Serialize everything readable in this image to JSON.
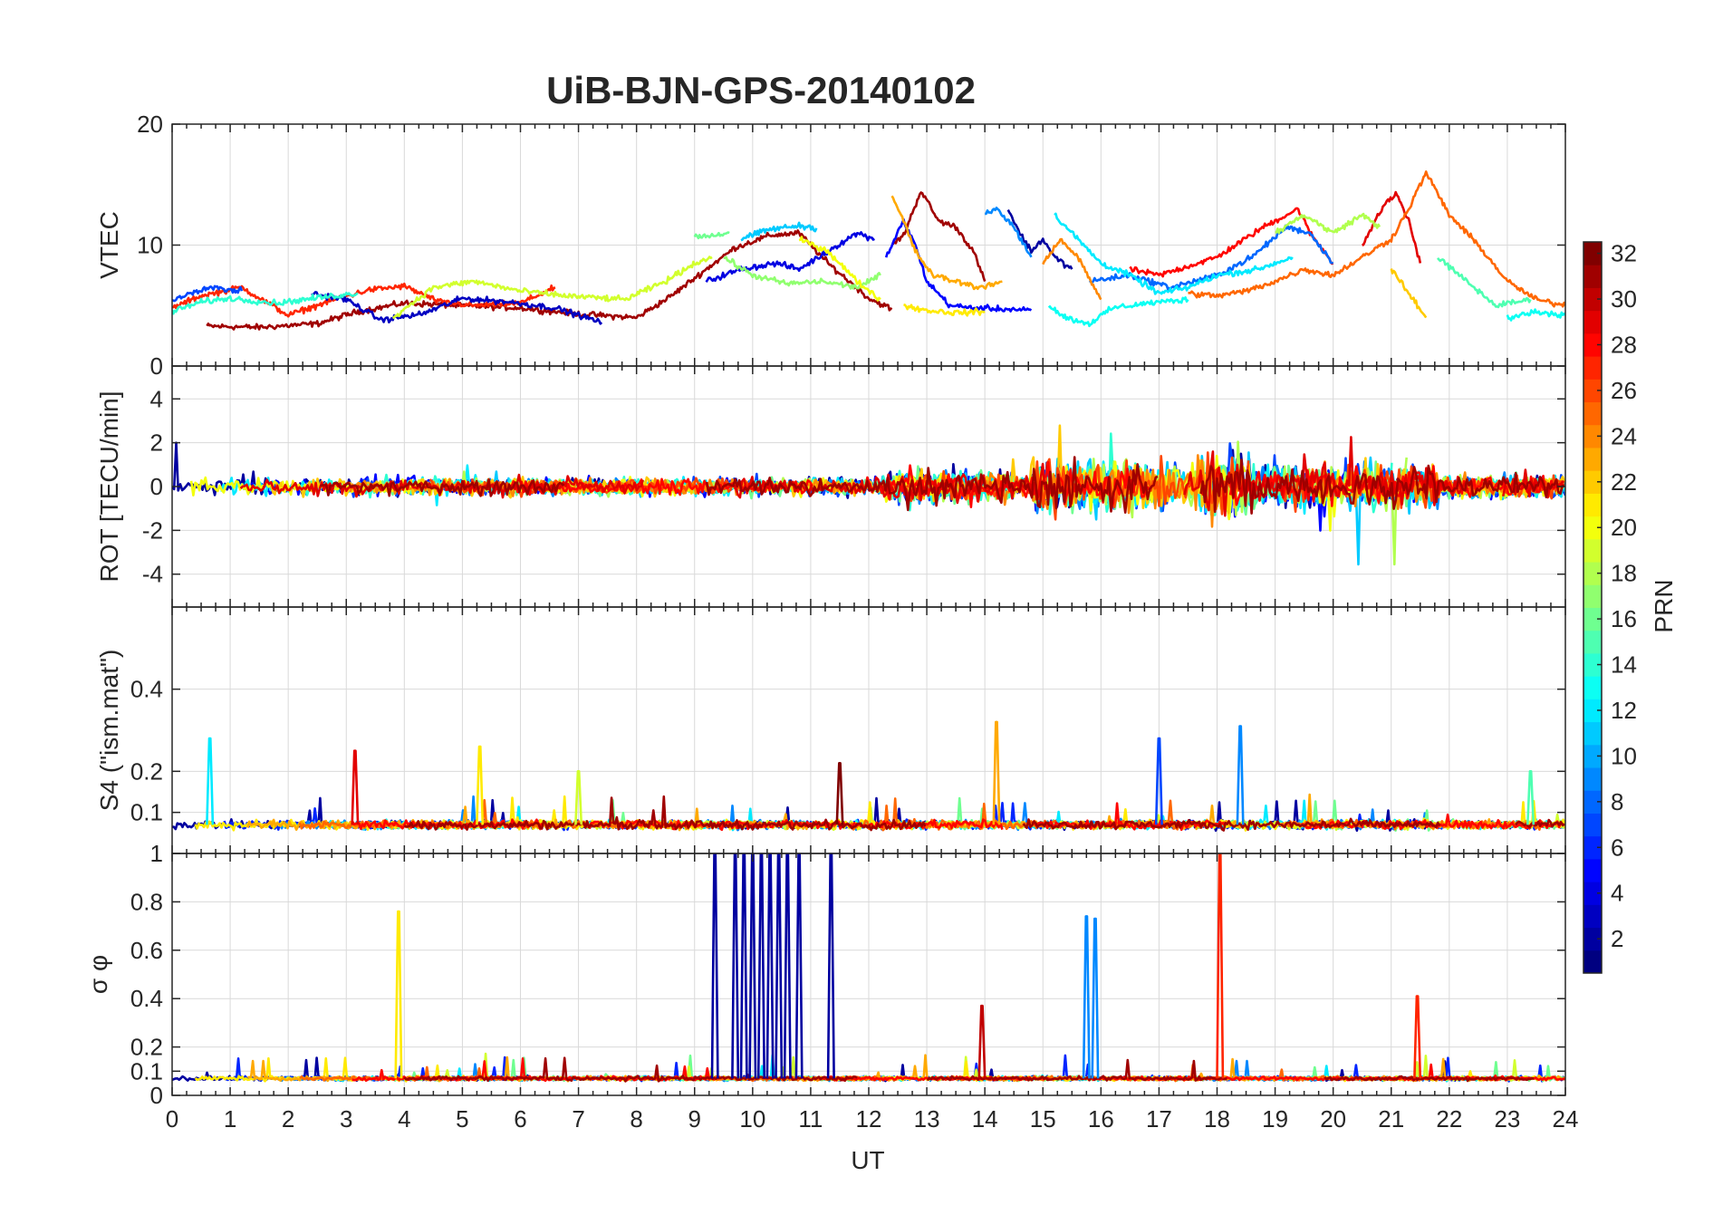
{
  "chart_data": {
    "type": "line",
    "title": "UiB-BJN-GPS-20140102",
    "xlabel": "UT",
    "x_ticks": [
      "0",
      "1",
      "2",
      "3",
      "4",
      "5",
      "6",
      "7",
      "8",
      "9",
      "10",
      "11",
      "12",
      "13",
      "14",
      "15",
      "16",
      "17",
      "18",
      "19",
      "20",
      "21",
      "22",
      "23",
      "24"
    ],
    "xlim": [
      0,
      24
    ],
    "colorbar": {
      "label": "PRN",
      "ticks": [
        "2",
        "4",
        "6",
        "8",
        "10",
        "12",
        "14",
        "16",
        "18",
        "20",
        "22",
        "24",
        "26",
        "28",
        "30",
        "32"
      ],
      "range": [
        1,
        32
      ],
      "colormap": "jet"
    },
    "panels": [
      {
        "ylabel": "VTEC",
        "ylim": [
          0,
          20
        ],
        "y_ticks": [
          "0",
          "10",
          "20"
        ],
        "series": [
          {
            "prn": 31,
            "x": [
              0.6,
              1.5,
              2.5,
              3.2,
              4.0,
              5.0,
              6.0,
              7.0,
              8.0,
              8.6,
              9.2,
              9.7,
              10.3,
              10.8,
              11.3,
              12.0,
              12.4
            ],
            "y": [
              3.3,
              3.2,
              3.5,
              4.5,
              5.2,
              5.0,
              4.8,
              4.3,
              4.0,
              5.8,
              8.0,
              9.8,
              10.8,
              11.0,
              8.5,
              5.6,
              4.7
            ]
          },
          {
            "prn": 31,
            "x": [
              12.4,
              12.6,
              12.9,
              13.2,
              13.5,
              13.8,
              14.0
            ],
            "y": [
              10.0,
              10.8,
              14.5,
              12.0,
              11.5,
              9.5,
              7.0
            ]
          },
          {
            "prn": 27,
            "x": [
              0.0,
              0.5,
              1.2,
              2.0,
              2.8,
              3.4,
              4.0,
              4.6,
              5.2,
              6.0,
              6.6
            ],
            "y": [
              4.8,
              5.8,
              6.5,
              4.2,
              5.5,
              6.3,
              6.6,
              5.3,
              5.0,
              5.2,
              6.5
            ]
          },
          {
            "prn": 28,
            "x": [
              16.5,
              17.0,
              18.0,
              18.8,
              19.4,
              19.6,
              20.0
            ],
            "y": [
              8.0,
              7.5,
              9.0,
              11.5,
              13.0,
              11.0,
              8.5
            ]
          },
          {
            "prn": 29,
            "x": [
              20.5,
              20.9,
              21.1,
              21.3,
              21.5
            ],
            "y": [
              10.0,
              13.5,
              14.2,
              12.0,
              8.5
            ]
          },
          {
            "prn": 3,
            "x": [
              2.4,
              3.0,
              3.6,
              4.3,
              5.0,
              5.8,
              6.6,
              7.4
            ],
            "y": [
              6.0,
              5.5,
              3.8,
              4.3,
              5.6,
              5.3,
              4.8,
              3.6
            ]
          },
          {
            "prn": 4,
            "x": [
              9.2,
              9.8,
              10.4,
              10.8,
              11.3,
              11.8,
              12.1
            ],
            "y": [
              7.0,
              8.0,
              8.5,
              8.0,
              9.5,
              11.0,
              10.5
            ]
          },
          {
            "prn": 2,
            "x": [
              14.4,
              14.6,
              14.8,
              15.0,
              15.2,
              15.5
            ],
            "y": [
              13.0,
              11.0,
              9.5,
              10.5,
              9.0,
              8.0
            ]
          },
          {
            "prn": 5,
            "x": [
              12.3,
              12.6,
              12.8,
              13.0,
              13.4,
              13.8,
              14.4,
              14.8
            ],
            "y": [
              9.0,
              12.0,
              10.0,
              7.0,
              5.0,
              4.8,
              4.7,
              4.6
            ]
          },
          {
            "prn": 9,
            "x": [
              14.0,
              14.2,
              14.5,
              14.8
            ],
            "y": [
              12.5,
              13.0,
              11.5,
              9.0
            ]
          },
          {
            "prn": 8,
            "x": [
              15.8,
              16.5,
              17.2,
              18.0,
              18.6,
              19.2,
              19.6,
              20.0
            ],
            "y": [
              7.0,
              7.5,
              6.5,
              7.5,
              9.0,
              11.5,
              11.0,
              8.5
            ]
          },
          {
            "prn": 12,
            "x": [
              15.2,
              15.5,
              16.0,
              16.5,
              17.0,
              17.5,
              18.0,
              18.7,
              19.3
            ],
            "y": [
              12.5,
              11.0,
              8.5,
              7.5,
              6.0,
              6.5,
              7.5,
              8.0,
              9.0
            ]
          },
          {
            "prn": 11,
            "x": [
              9.8,
              10.3,
              10.8,
              11.1
            ],
            "y": [
              10.5,
              11.3,
              11.6,
              11.4
            ]
          },
          {
            "prn": 16,
            "x": [
              9.0,
              9.3,
              9.6
            ],
            "y": [
              10.8,
              10.7,
              11.0
            ]
          },
          {
            "prn": 14,
            "x": [
              0.0,
              0.5,
              1.0,
              1.8,
              2.6,
              3.2
            ],
            "y": [
              4.5,
              5.3,
              5.6,
              5.2,
              5.7,
              6.0
            ]
          },
          {
            "prn": 13,
            "x": [
              15.1,
              15.4,
              15.8,
              16.2,
              16.8,
              17.5
            ],
            "y": [
              5.0,
              4.0,
              3.5,
              4.8,
              5.2,
              5.5
            ]
          },
          {
            "prn": 19,
            "x": [
              3.8,
              4.5,
              5.2,
              6.0,
              6.8,
              7.8,
              8.5,
              9.0,
              9.3
            ],
            "y": [
              4.0,
              6.5,
              7.0,
              6.2,
              5.8,
              5.5,
              7.0,
              8.5,
              9.0
            ]
          },
          {
            "prn": 17,
            "x": [
              9.5,
              10.0,
              10.6,
              11.2,
              11.8,
              12.2
            ],
            "y": [
              9.0,
              7.5,
              6.8,
              7.0,
              6.5,
              7.5
            ]
          },
          {
            "prn": 20,
            "x": [
              10.8,
              11.3,
              11.8,
              12.2
            ],
            "y": [
              10.5,
              9.5,
              7.0,
              5.5
            ]
          },
          {
            "prn": 21,
            "x": [
              12.6,
              13.0,
              13.5,
              14.0
            ],
            "y": [
              5.0,
              4.6,
              4.4,
              4.5
            ]
          },
          {
            "prn": 18,
            "x": [
              19.0,
              19.5,
              20.0,
              20.5,
              20.8
            ],
            "y": [
              11.0,
              12.5,
              11.0,
              12.5,
              11.5
            ]
          },
          {
            "prn": 15,
            "x": [
              21.8,
              22.3,
              22.8,
              23.4
            ],
            "y": [
              9.0,
              7.0,
              5.0,
              5.5
            ]
          },
          {
            "prn": 13,
            "x": [
              23.0,
              23.5,
              24.0
            ],
            "y": [
              4.0,
              4.5,
              4.2
            ]
          },
          {
            "prn": 23,
            "x": [
              12.4,
              12.6,
              12.8,
              13.1,
              13.5,
              13.9,
              14.3
            ],
            "y": [
              14.0,
              12.0,
              9.5,
              7.5,
              7.0,
              6.5,
              7.0
            ]
          },
          {
            "prn": 22,
            "x": [
              21.0,
              21.3,
              21.6
            ],
            "y": [
              8.0,
              6.0,
              4.0
            ]
          },
          {
            "prn": 24,
            "x": [
              15.0,
              15.3,
              15.6,
              16.0
            ],
            "y": [
              8.5,
              10.5,
              9.0,
              5.5
            ]
          },
          {
            "prn": 25,
            "x": [
              17.5,
              18.0,
              18.5,
              19.0,
              19.5,
              20.0,
              20.5,
              21.0,
              21.3,
              21.6,
              22.0,
              22.5,
              23.0,
              23.5,
              24.0
            ],
            "y": [
              6.0,
              5.8,
              6.2,
              7.0,
              8.0,
              7.5,
              9.0,
              10.5,
              13.0,
              16.0,
              12.5,
              10.0,
              7.0,
              5.5,
              5.0
            ]
          },
          {
            "prn": 7,
            "x": [
              0.0,
              0.6,
              1.2
            ],
            "y": [
              5.5,
              6.5,
              6.2
            ]
          }
        ]
      },
      {
        "ylabel": "ROT [TECU/min]",
        "ylim": [
          -5.5,
          5.5
        ],
        "y_ticks": [
          "-4",
          "-2",
          "0",
          "2",
          "4"
        ]
      },
      {
        "ylabel": "S4 (\"ism.mat\")",
        "ylim": [
          0.0,
          0.6
        ],
        "y_ticks": [
          "0.1",
          "0.2",
          "0.4"
        ],
        "series": [
          {
            "prn": 12,
            "x": [
              0.65
            ],
            "y": [
              0.28
            ]
          },
          {
            "prn": 29,
            "x": [
              3.15
            ],
            "y": [
              0.25
            ]
          },
          {
            "prn": 21,
            "x": [
              5.3
            ],
            "y": [
              0.26
            ]
          },
          {
            "prn": 19,
            "x": [
              7.0
            ],
            "y": [
              0.2
            ]
          },
          {
            "prn": 32,
            "x": [
              11.5
            ],
            "y": [
              0.22
            ]
          },
          {
            "prn": 23,
            "x": [
              14.2
            ],
            "y": [
              0.32
            ]
          },
          {
            "prn": 7,
            "x": [
              17.0
            ],
            "y": [
              0.28
            ]
          },
          {
            "prn": 9,
            "x": [
              18.4
            ],
            "y": [
              0.31
            ]
          },
          {
            "prn": 15,
            "x": [
              23.4
            ],
            "y": [
              0.2
            ]
          }
        ]
      },
      {
        "ylabel": "σ φ",
        "ylim": [
          0,
          1
        ],
        "y_ticks": [
          "0",
          "0.1",
          "0.2",
          "0.4",
          "0.6",
          "0.8",
          "1"
        ],
        "series": [
          {
            "prn": 21,
            "x": [
              3.9
            ],
            "y": [
              0.76
            ]
          },
          {
            "prn": 2,
            "x": [
              9.35,
              9.7,
              9.85,
              10.0,
              10.15,
              10.3,
              10.45,
              10.6,
              10.8,
              11.35
            ],
            "y": [
              1.0,
              1.0,
              1.0,
              1.0,
              1.0,
              1.0,
              1.0,
              1.0,
              1.0,
              1.0
            ]
          },
          {
            "prn": 9,
            "x": [
              15.75,
              15.9
            ],
            "y": [
              0.74,
              0.73
            ]
          },
          {
            "prn": 27,
            "x": [
              18.05
            ],
            "y": [
              1.0
            ]
          },
          {
            "prn": 27,
            "x": [
              21.45
            ],
            "y": [
              0.41
            ]
          },
          {
            "prn": 30,
            "x": [
              13.95
            ],
            "y": [
              0.37
            ]
          }
        ]
      }
    ]
  }
}
